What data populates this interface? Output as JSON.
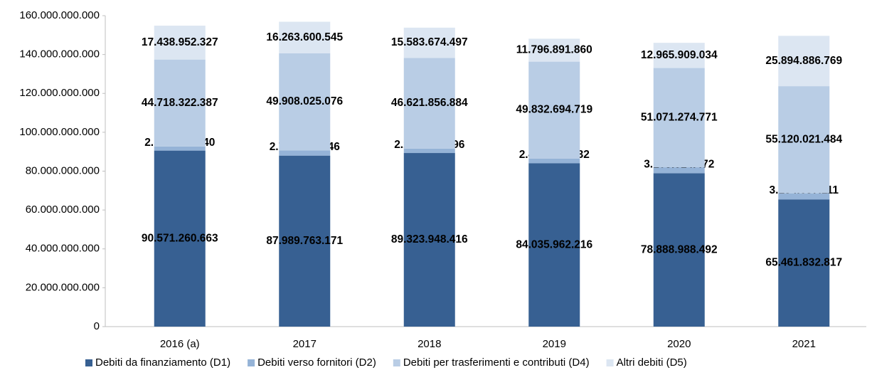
{
  "chart_data": {
    "type": "stacked_bar",
    "categories": [
      "2016 (a)",
      "2017",
      "2018",
      "2019",
      "2020",
      "2021"
    ],
    "series": [
      {
        "name": "Debiti da finanziamento (D1)",
        "color": "#376092",
        "values": [
          90571260663,
          87989763171,
          89323948416,
          84035962216,
          78888988492,
          65461832817
        ],
        "value_labels": [
          "90.571.260.663",
          "87.989.763.171",
          "89.323.948.416",
          "84.035.962.216",
          "78.888.988.492",
          "65.461.832.817"
        ]
      },
      {
        "name": "Debiti verso fornitori (D2)",
        "color": "#95b3d7",
        "values": [
          2126347540,
          2710618946,
          2299605596,
          2478045332,
          3103514472,
          3134637111
        ],
        "value_labels": [
          "2.126.347.540",
          "2.710.618.946",
          "2.299.605.596",
          "2.478.045.332",
          "3.103.514.472",
          "3.134.637.111"
        ]
      },
      {
        "name": "Debiti per trasferimenti e contributi (D4)",
        "color": "#b9cde5",
        "values": [
          44718322387,
          49908025076,
          46621856884,
          49832694719,
          51071274771,
          55120021484
        ],
        "value_labels": [
          "44.718.322.387",
          "49.908.025.076",
          "46.621.856.884",
          "49.832.694.719",
          "51.071.274.771",
          "55.120.021.484"
        ]
      },
      {
        "name": "Altri debiti (D5)",
        "color": "#dce6f2",
        "values": [
          17438952327,
          16263600545,
          15583674497,
          11796891860,
          12965909034,
          25894886769
        ],
        "value_labels": [
          "17.438.952.327",
          "16.263.600.545",
          "15.583.674.497",
          "11.796.891.860",
          "12.965.909.034",
          "25.894.886.769"
        ]
      }
    ],
    "ylim": [
      0,
      160000000000
    ],
    "yticks": [
      0,
      {
        "value": 20000000000,
        "label": "20.000.000.000"
      },
      {
        "value": 40000000000,
        "label": "40.000.000.000"
      },
      {
        "value": 60000000000,
        "label": "60.000.000.000"
      },
      {
        "value": 80000000000,
        "label": "80.000.000.000"
      },
      {
        "value": 100000000000,
        "label": "100.000.000.000"
      },
      {
        "value": 120000000000,
        "label": "120.000.000.000"
      },
      {
        "value": 140000000000,
        "label": "140.000.000.000"
      },
      {
        "value": 160000000000,
        "label": "160.000.000.000"
      }
    ],
    "legend": "bottom"
  }
}
